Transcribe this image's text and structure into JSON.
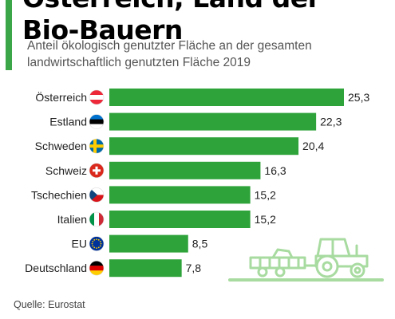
{
  "header": {
    "title_lines": [
      "Österreich, Land der",
      "Bio-Bauern"
    ],
    "subtitle_lines": [
      "Anteil ökologisch genutzter Fläche an der gesamten",
      "landwirtschaftlich genutzten Fläche 2019"
    ]
  },
  "footer": {
    "source": "Quelle: Eurostat"
  },
  "colors": {
    "accent": "#3aa648",
    "bar": "#2ea33a",
    "tractor": "#a8dba0"
  },
  "chart_data": {
    "type": "bar",
    "orientation": "horizontal",
    "categories": [
      "Österreich",
      "Estland",
      "Schweden",
      "Schweiz",
      "Tschechien",
      "Italien",
      "EU",
      "Deutschland"
    ],
    "values": [
      25.3,
      22.3,
      20.4,
      16.3,
      15.2,
      15.2,
      8.5,
      7.8
    ],
    "value_labels": [
      "25,3",
      "22,3",
      "20,4",
      "16,3",
      "15,2",
      "15,2",
      "8,5",
      "7,8"
    ],
    "flags": [
      "flag-austria-icon",
      "flag-estonia-icon",
      "flag-sweden-icon",
      "flag-switzerland-icon",
      "flag-czechia-icon",
      "flag-italy-icon",
      "flag-eu-icon",
      "flag-germany-icon"
    ],
    "title": "Österreich, Land der Bio-Bauern",
    "subtitle": "Anteil ökologisch genutzter Fläche an der gesamten landwirtschaftlich genutzten Fläche 2019",
    "xlabel": "",
    "ylabel": "",
    "xlim": [
      0,
      25.3
    ],
    "grid": false,
    "legend": "none"
  }
}
